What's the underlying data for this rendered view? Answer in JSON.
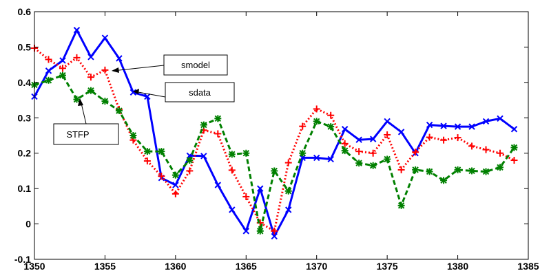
{
  "chart_data": {
    "type": "line",
    "xlim": [
      1350,
      1385
    ],
    "ylim": [
      -0.1,
      0.6
    ],
    "x_ticks": [
      1350,
      1355,
      1360,
      1365,
      1370,
      1375,
      1380,
      1385
    ],
    "x_tick_labels": [
      "1350",
      "1355",
      "1360",
      "1365",
      "1370",
      "1375",
      "1380",
      "1385"
    ],
    "y_ticks": [
      -0.1,
      0,
      0.1,
      0.2,
      0.3,
      0.4,
      0.5,
      0.6
    ],
    "y_tick_labels": [
      "-0.1",
      "0",
      "0.1",
      "0.2",
      "0.3",
      "0.4",
      "0.5",
      "0.6"
    ],
    "grid": false,
    "x": [
      1350,
      1351,
      1352,
      1353,
      1354,
      1355,
      1356,
      1357,
      1358,
      1359,
      1360,
      1361,
      1362,
      1363,
      1364,
      1365,
      1366,
      1367,
      1368,
      1369,
      1370,
      1371,
      1372,
      1373,
      1374,
      1375,
      1376,
      1377,
      1378,
      1379,
      1380,
      1381,
      1382,
      1383,
      1384
    ],
    "series": [
      {
        "color": "#0000ff",
        "line_style": "solid",
        "marker": "x",
        "values": [
          0.36,
          0.433,
          0.462,
          0.548,
          0.472,
          0.526,
          0.468,
          0.372,
          0.36,
          0.13,
          0.11,
          0.193,
          0.192,
          0.11,
          0.04,
          -0.02,
          0.1,
          -0.035,
          0.04,
          0.187,
          0.187,
          0.183,
          0.268,
          0.238,
          0.24,
          0.29,
          0.26,
          0.2,
          0.28,
          0.277,
          0.275,
          0.275,
          0.29,
          0.298,
          0.268
        ]
      },
      {
        "color": "#ff0000",
        "line_style": "dotted",
        "marker": "+",
        "values": [
          0.497,
          0.465,
          0.44,
          0.47,
          0.415,
          0.435,
          0.324,
          0.237,
          0.178,
          0.135,
          0.085,
          0.15,
          0.265,
          0.255,
          0.152,
          0.077,
          0.003,
          -0.02,
          0.173,
          0.276,
          0.325,
          0.307,
          0.227,
          0.205,
          0.2,
          0.252,
          0.153,
          0.203,
          0.245,
          0.237,
          0.244,
          0.22,
          0.21,
          0.2,
          0.18
        ]
      },
      {
        "color": "#008000",
        "line_style": "dashed",
        "marker": "*",
        "values": [
          0.393,
          0.406,
          0.42,
          0.352,
          0.377,
          0.347,
          0.32,
          0.25,
          0.205,
          0.205,
          0.138,
          0.18,
          0.28,
          0.298,
          0.197,
          0.2,
          -0.02,
          0.15,
          0.093,
          0.2,
          0.29,
          0.275,
          0.207,
          0.172,
          0.165,
          0.183,
          0.052,
          0.153,
          0.148,
          0.123,
          0.153,
          0.15,
          0.148,
          0.16,
          0.216
        ]
      }
    ],
    "annotations": [
      {
        "text": "smodel",
        "series_index": 1,
        "x": 1355,
        "y": 0.435
      },
      {
        "text": "sdata",
        "series_index": 0,
        "x": 1356.4,
        "y": 0.375
      },
      {
        "text": "STFP",
        "series_index": 2,
        "x": 1353.5,
        "y": 0.355
      }
    ]
  }
}
